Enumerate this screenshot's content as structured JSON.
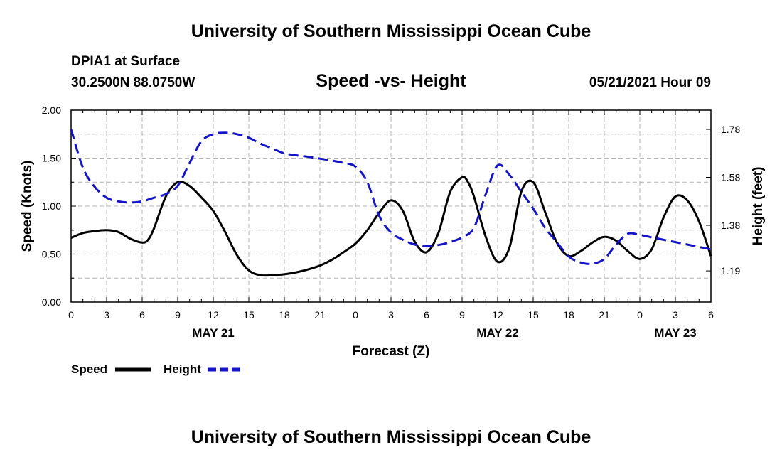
{
  "header": {
    "title": "University of Southern Mississippi Ocean Cube",
    "station": "DPIA1 at Surface",
    "coords": "30.2500N  88.0750W",
    "plot_title": "Speed -vs- Height",
    "timestamp": "05/21/2021 Hour 09"
  },
  "footer": {
    "title": "University of Southern Mississippi Ocean Cube"
  },
  "legend": {
    "speed_label": "Speed",
    "height_label": "Height"
  },
  "colors": {
    "speed": "#000000",
    "height": "#1515c8",
    "grid": "#b4b4b4"
  },
  "chart_data": {
    "type": "line",
    "title": "Speed -vs- Height",
    "xlabel": "Forecast (Z)",
    "ylabel_left": "Speed (Knots)",
    "ylabel_right": "Height (feet)",
    "x_ticks": [
      0,
      3,
      6,
      9,
      12,
      15,
      18,
      21,
      24,
      27,
      30,
      33,
      36,
      39,
      42,
      45,
      48,
      51,
      54
    ],
    "x_tick_labels": [
      "0",
      "3",
      "6",
      "9",
      "12",
      "15",
      "18",
      "21",
      "0",
      "3",
      "6",
      "9",
      "12",
      "15",
      "18",
      "21",
      "0",
      "3",
      "6"
    ],
    "date_labels": [
      {
        "text": "MAY 21",
        "hour": 12
      },
      {
        "text": "MAY 22",
        "hour": 36
      },
      {
        "text": "MAY 23",
        "hour": 51
      }
    ],
    "xlim": [
      0,
      54
    ],
    "ylim_left": [
      0,
      2
    ],
    "left_ticks": [
      0,
      0.5,
      1.0,
      1.5,
      2.0
    ],
    "left_tick_labels": [
      "0.00",
      "0.50",
      "1.00",
      "1.50",
      "2.00"
    ],
    "right_ticks": [
      1.19,
      1.38,
      1.58,
      1.78
    ],
    "right_tick_labels": [
      "1.19",
      "1.38",
      "1.58",
      "1.78"
    ],
    "ylim_right": [
      1.06,
      1.86
    ],
    "grid": true,
    "series": [
      {
        "name": "Speed",
        "axis": "left",
        "style": "solid",
        "x": [
          0,
          1,
          2,
          3,
          4,
          5,
          6,
          6.5,
          7,
          8,
          9,
          10,
          11,
          12,
          13,
          14,
          15,
          16,
          17,
          18,
          19,
          20,
          21,
          22,
          23,
          24,
          25,
          26,
          27,
          28,
          29,
          30,
          31,
          32,
          33,
          33.5,
          34,
          35,
          36,
          37,
          38,
          39,
          40,
          41,
          42,
          43,
          44,
          45,
          46,
          47,
          48,
          49,
          50,
          51,
          52,
          53,
          54
        ],
        "y": [
          0.67,
          0.72,
          0.74,
          0.75,
          0.73,
          0.66,
          0.62,
          0.65,
          0.77,
          1.1,
          1.25,
          1.21,
          1.09,
          0.95,
          0.73,
          0.49,
          0.33,
          0.28,
          0.28,
          0.29,
          0.31,
          0.34,
          0.38,
          0.44,
          0.52,
          0.61,
          0.75,
          0.93,
          1.06,
          0.95,
          0.63,
          0.52,
          0.72,
          1.15,
          1.3,
          1.25,
          1.1,
          0.68,
          0.42,
          0.57,
          1.15,
          1.25,
          0.94,
          0.62,
          0.48,
          0.53,
          0.62,
          0.68,
          0.64,
          0.53,
          0.45,
          0.55,
          0.88,
          1.1,
          1.06,
          0.84,
          0.48
        ]
      },
      {
        "name": "Height",
        "axis": "right",
        "style": "dashed",
        "x": [
          0,
          1,
          2,
          3,
          4,
          5,
          6,
          7,
          8,
          9,
          10,
          11,
          12,
          13,
          14,
          15,
          16,
          17,
          18,
          19,
          20,
          21,
          22,
          23,
          24,
          25,
          26,
          27,
          28,
          29,
          30,
          31,
          32,
          33,
          34,
          35,
          36,
          37,
          38,
          39,
          40,
          41,
          42,
          43,
          44,
          45,
          46,
          47,
          48,
          49,
          50,
          51,
          52,
          53,
          54
        ],
        "y": [
          1.78,
          1.62,
          1.54,
          1.495,
          1.48,
          1.475,
          1.48,
          1.495,
          1.51,
          1.545,
          1.64,
          1.73,
          1.76,
          1.766,
          1.76,
          1.745,
          1.72,
          1.7,
          1.68,
          1.672,
          1.666,
          1.658,
          1.65,
          1.64,
          1.625,
          1.56,
          1.42,
          1.35,
          1.32,
          1.3,
          1.295,
          1.298,
          1.31,
          1.33,
          1.37,
          1.51,
          1.63,
          1.59,
          1.52,
          1.45,
          1.37,
          1.31,
          1.25,
          1.225,
          1.22,
          1.24,
          1.3,
          1.345,
          1.34,
          1.33,
          1.32,
          1.31,
          1.3,
          1.29,
          1.28
        ]
      }
    ]
  }
}
